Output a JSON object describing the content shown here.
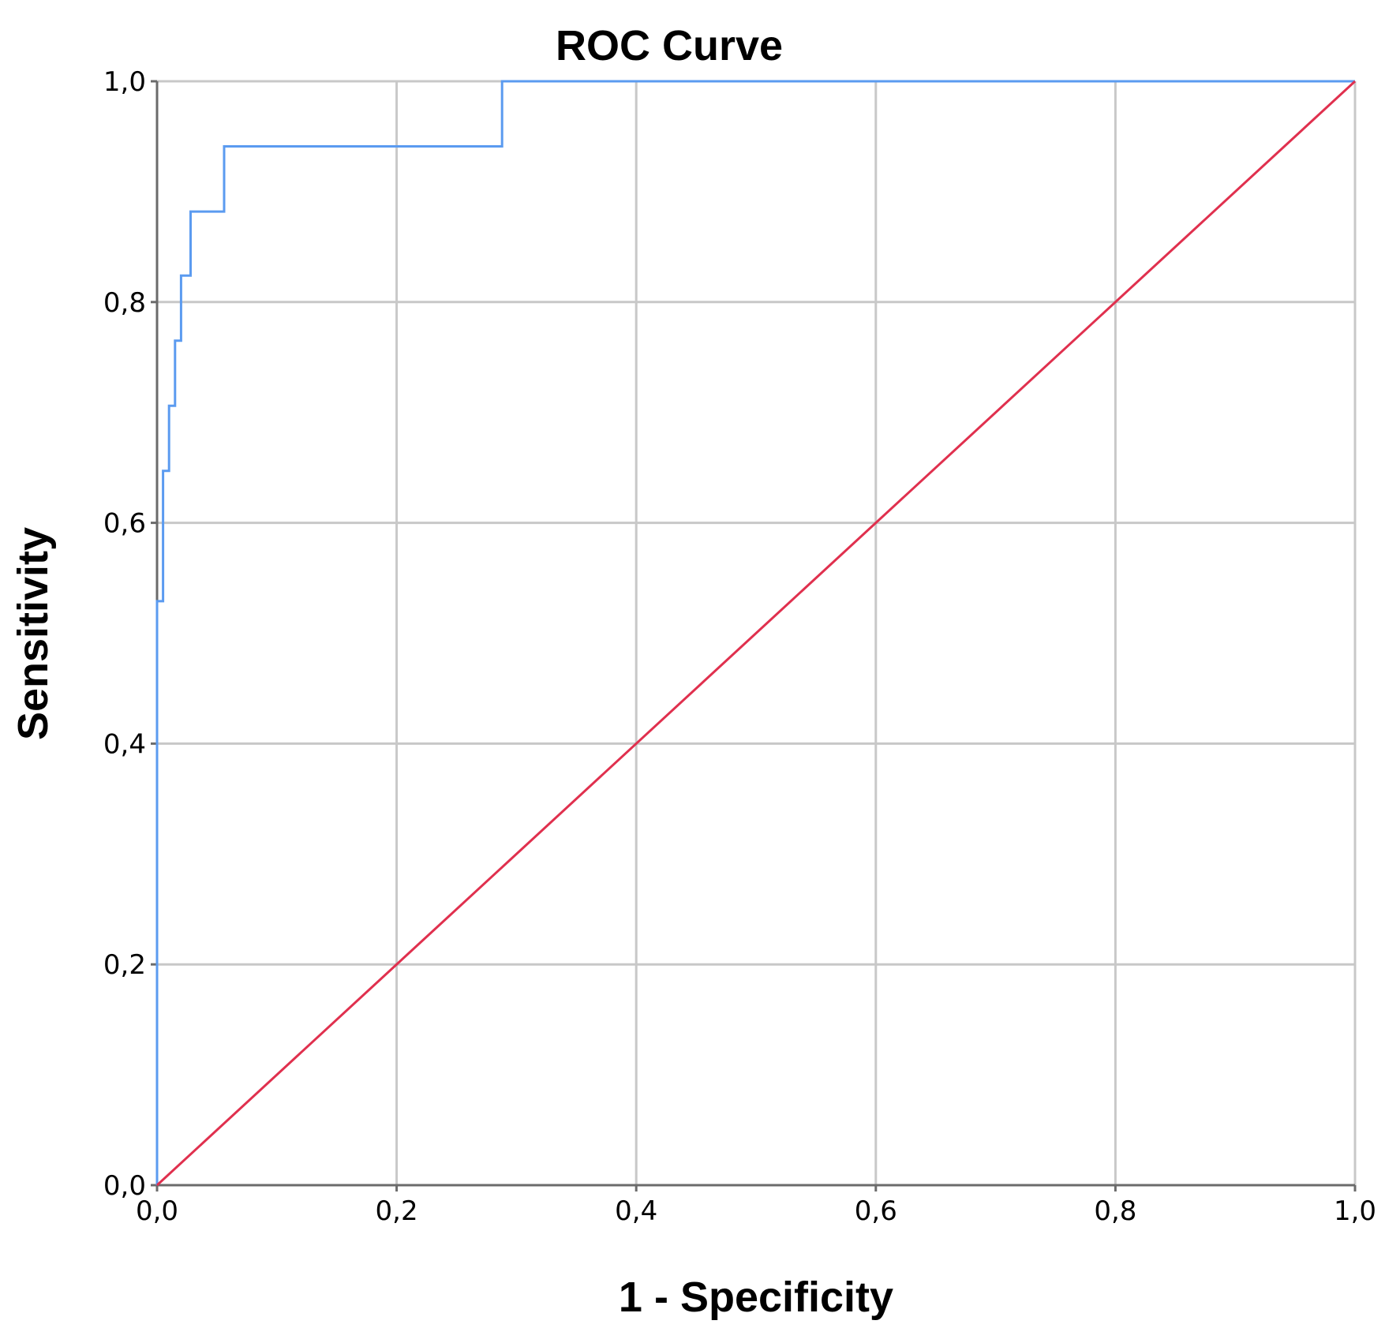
{
  "chart_data": {
    "type": "line",
    "title": "ROC Curve",
    "xlabel": "1 - Specificity",
    "ylabel": "Sensitivity",
    "xlim": [
      0,
      1
    ],
    "ylim": [
      0,
      1
    ],
    "grid": true,
    "x_ticks": [
      0,
      0.2,
      0.4,
      0.6,
      0.8,
      1.0
    ],
    "x_tick_labels": [
      "0,0",
      "0,2",
      "0,4",
      "0,6",
      "0,8",
      "1,0"
    ],
    "y_ticks": [
      0,
      0.2,
      0.4,
      0.6,
      0.8,
      1.0
    ],
    "y_tick_labels": [
      "0,0",
      "0,2",
      "0,4",
      "0,6",
      "0,8",
      "1,0"
    ],
    "series": [
      {
        "color": "#5b9bf0",
        "step": true,
        "x": [
          0,
          0,
          0.005,
          0.005,
          0.01,
          0.01,
          0.015,
          0.015,
          0.02,
          0.02,
          0.028,
          0.028,
          0.056,
          0.056,
          0.288,
          0.288,
          1.0
        ],
        "y": [
          0,
          0.529,
          0.529,
          0.647,
          0.647,
          0.706,
          0.706,
          0.765,
          0.765,
          0.824,
          0.824,
          0.882,
          0.882,
          0.941,
          0.941,
          1.0,
          1.0
        ]
      },
      {
        "color": "#e0304e",
        "step": false,
        "x": [
          0,
          1
        ],
        "y": [
          0,
          1
        ]
      }
    ]
  }
}
